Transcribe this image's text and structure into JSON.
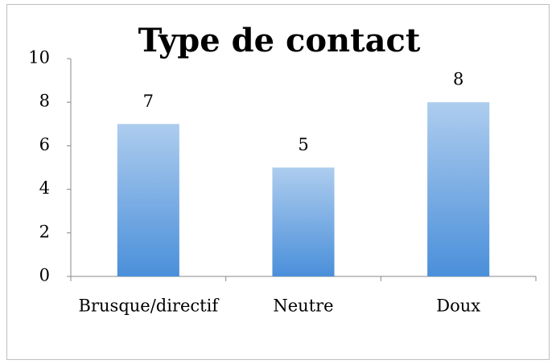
{
  "chart_data": {
    "type": "bar",
    "title": "Type de contact",
    "categories": [
      "Brusque/directif",
      "Neutre",
      "Doux"
    ],
    "values": [
      7,
      5,
      8
    ],
    "color": "#4a8fda",
    "ylim": [
      0,
      10
    ],
    "yticks": [
      0,
      2,
      4,
      6,
      8,
      10
    ],
    "grid": false
  }
}
